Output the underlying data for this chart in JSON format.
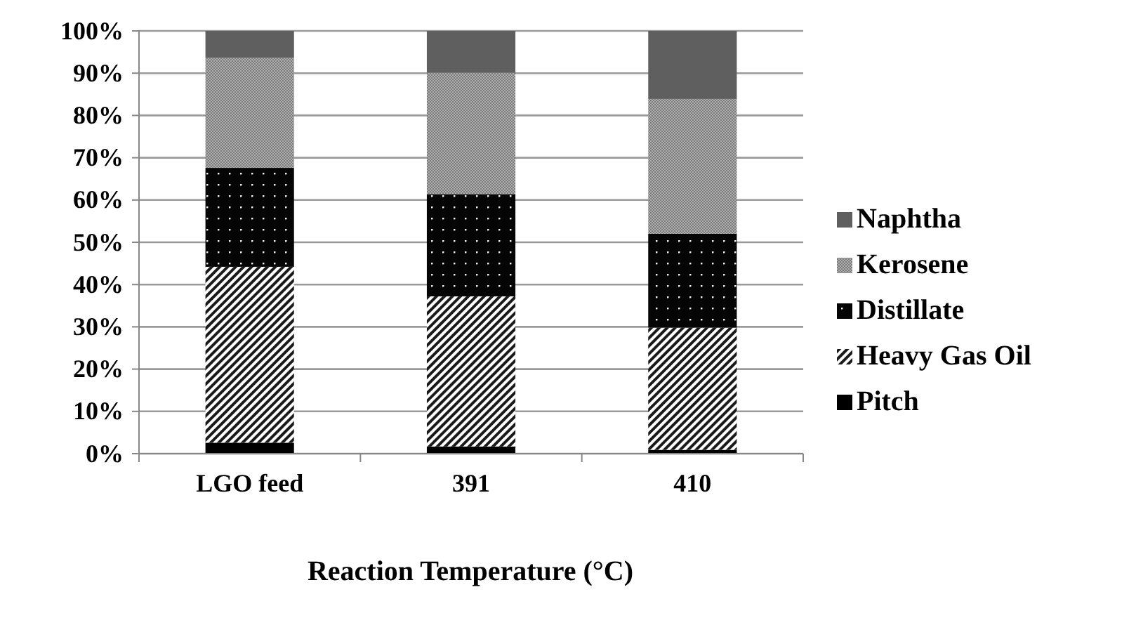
{
  "chart_data": {
    "type": "bar",
    "stacked": true,
    "xlabel": "Reaction Temperature (°C)",
    "categories": [
      "LGO feed",
      "391",
      "410"
    ],
    "series": [
      {
        "name": "Pitch",
        "color": "#000000",
        "values": [
          2.6,
          1.7,
          0.9
        ]
      },
      {
        "name": "Heavy Gas Oil",
        "color": "#1a1a1a",
        "values": [
          41.6,
          35.5,
          28.9
        ]
      },
      {
        "name": "Distillate",
        "color": "#050505",
        "values": [
          23.4,
          24.2,
          22.2
        ]
      },
      {
        "name": "Kerosene",
        "color": "#7a7a7a",
        "values": [
          26.0,
          28.7,
          31.9
        ]
      },
      {
        "name": "Naphtha",
        "color": "#5f5f5f",
        "values": [
          6.4,
          9.9,
          16.1
        ]
      }
    ],
    "ylim": [
      0,
      100
    ],
    "yticks": [
      {
        "value": 0,
        "label": "0%"
      },
      {
        "value": 10,
        "label": "10%"
      },
      {
        "value": 20,
        "label": "20%"
      },
      {
        "value": 30,
        "label": "30%"
      },
      {
        "value": 40,
        "label": "40%"
      },
      {
        "value": 50,
        "label": "50%"
      },
      {
        "value": 60,
        "label": "60%"
      },
      {
        "value": 70,
        "label": "70%"
      },
      {
        "value": 80,
        "label": "80%"
      },
      {
        "value": 90,
        "label": "90%"
      },
      {
        "value": 100,
        "label": "100%"
      }
    ],
    "grid": "y",
    "legend": "right"
  }
}
